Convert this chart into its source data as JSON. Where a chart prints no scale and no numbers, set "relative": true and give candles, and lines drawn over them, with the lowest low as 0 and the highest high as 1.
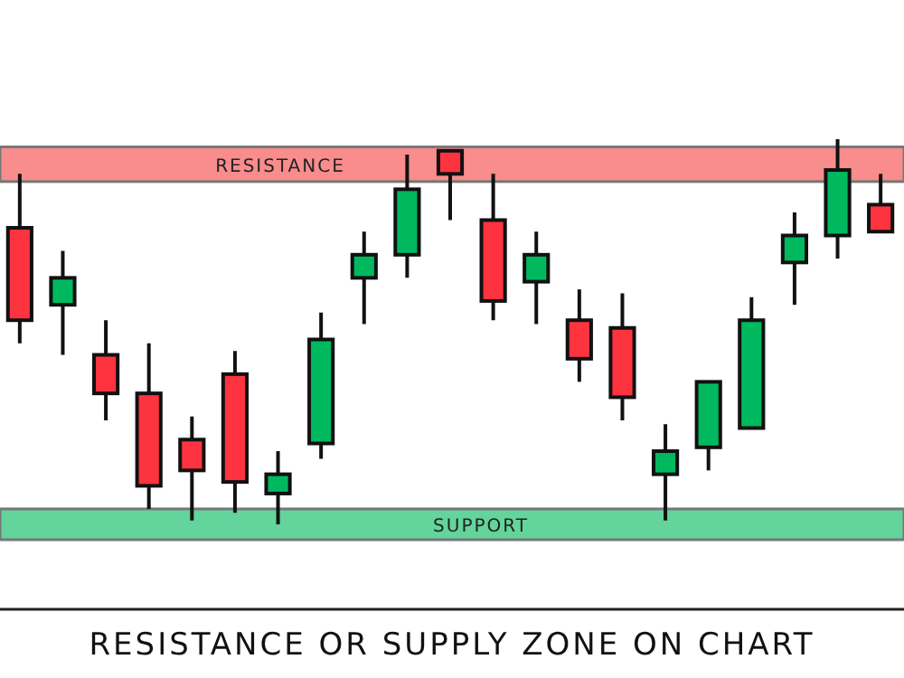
{
  "chart_data": {
    "type": "candlestick",
    "title": "RESISTANCE OR SUPPLY ZONE ON CHART",
    "relative": true,
    "categories": [
      null,
      null,
      null,
      null,
      null,
      null,
      null,
      null,
      null,
      null,
      null,
      null,
      null,
      null,
      null,
      null,
      null,
      null,
      null,
      null,
      null
    ],
    "ohlc": [
      [
        0.77,
        0.91,
        0.47,
        0.53
      ],
      [
        0.57,
        0.71,
        0.44,
        0.64
      ],
      [
        0.44,
        0.53,
        0.27,
        0.34
      ],
      [
        0.34,
        0.47,
        0.04,
        0.1
      ],
      [
        0.22,
        0.28,
        0.01,
        0.14
      ],
      [
        0.39,
        0.45,
        0.03,
        0.11
      ],
      [
        0.08,
        0.19,
        0,
        0.13
      ],
      [
        0.21,
        0.55,
        0.17,
        0.48
      ],
      [
        0.64,
        0.76,
        0.52,
        0.7
      ],
      [
        0.7,
        0.96,
        0.64,
        0.87
      ],
      [
        0.97,
        0.97,
        0.79,
        0.91
      ],
      [
        0.79,
        0.91,
        0.53,
        0.58
      ],
      [
        0.63,
        0.76,
        0.52,
        0.7
      ],
      [
        0.53,
        0.61,
        0.37,
        0.43
      ],
      [
        0.51,
        0.6,
        0.27,
        0.33
      ],
      [
        0.13,
        0.26,
        0.01,
        0.19
      ],
      [
        0.2,
        0.37,
        0.14,
        0.37
      ],
      [
        0.25,
        0.59,
        0.25,
        0.53
      ],
      [
        0.68,
        0.81,
        0.57,
        0.75
      ],
      [
        0.75,
        1,
        0.69,
        0.92
      ],
      [
        0.83,
        0.91,
        0.76,
        0.76
      ]
    ],
    "colors": [
      "#fe3340",
      "#00b95f",
      "#fe3340",
      "#fe3340",
      "#fe3340",
      "#fe3340",
      "#00b95f",
      "#00b95f",
      "#00b95f",
      "#00b95f",
      "#fe3340",
      "#fe3340",
      "#00b95f",
      "#fe3340",
      "#fe3340",
      "#00b95f",
      "#00b95f",
      "#00b95f",
      "#00b95f",
      "#00b95f",
      "#fe3340"
    ],
    "bands": [
      {
        "axis": "y",
        "from": 0.89,
        "to": 0.98,
        "label": "RESISTANCE",
        "color": "#f98c8c"
      },
      {
        "axis": "y",
        "from": -0.04,
        "to": 0.04,
        "label": "SUPPORT",
        "color": "#63d49b"
      }
    ]
  }
}
